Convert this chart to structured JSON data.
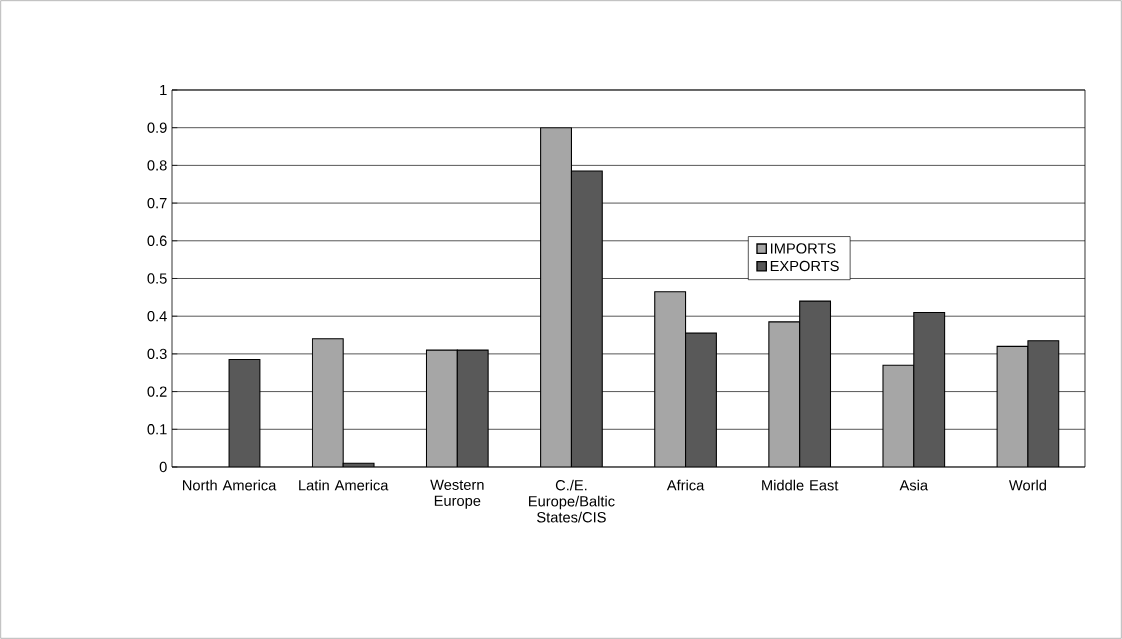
{
  "chart_data": {
    "type": "bar",
    "categories": [
      "North America",
      "Latin America",
      "Western Europe",
      "C./E. Europe/Baltic States/CIS",
      "Africa",
      "Middle East",
      "Asia",
      "World"
    ],
    "series": [
      {
        "name": "IMPORTS",
        "color": "#a6a6a6",
        "values": [
          null,
          0.34,
          0.31,
          0.9,
          0.465,
          0.385,
          0.27,
          0.32
        ]
      },
      {
        "name": "EXPORTS",
        "color": "#595959",
        "values": [
          0.285,
          0.01,
          0.31,
          0.785,
          0.355,
          0.44,
          0.41,
          0.335
        ]
      }
    ],
    "ylim": [
      0,
      1
    ],
    "yticks": [
      0,
      0.1,
      0.2,
      0.3,
      0.4,
      0.5,
      0.6,
      0.7,
      0.8,
      0.9,
      1
    ],
    "grid": "y",
    "legend": "right"
  }
}
